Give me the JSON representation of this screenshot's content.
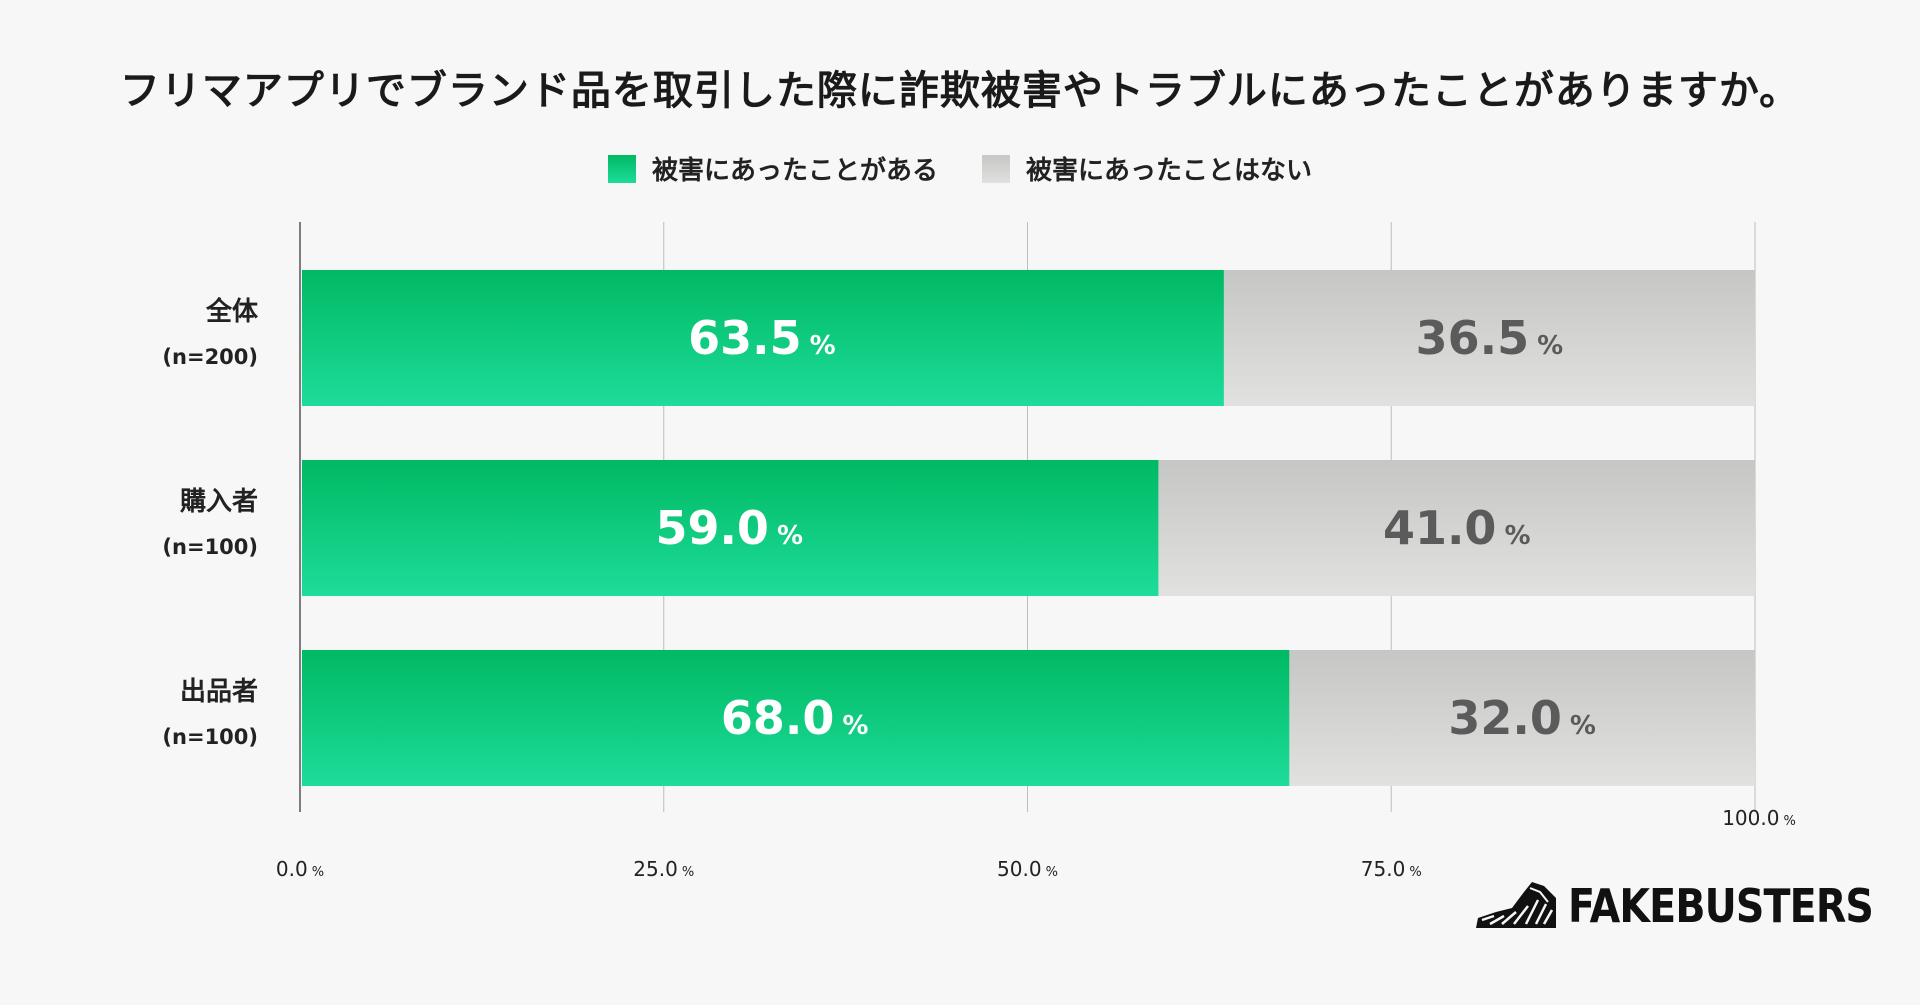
{
  "chart_data": {
    "type": "bar",
    "stacked": true,
    "orientation": "horizontal",
    "title": "フリマアプリでブランド品を取引した際に詐欺被害やトラブルにあったことがありますか。",
    "categories": [
      {
        "label": "全体",
        "sublabel": "(n=200)"
      },
      {
        "label": "購入者",
        "sublabel": "(n=100)"
      },
      {
        "label": "出品者",
        "sublabel": "(n=100)"
      }
    ],
    "series": [
      {
        "name": "被害にあったことがある",
        "values": [
          63.5,
          59.0,
          68.0
        ],
        "color": "#00b963"
      },
      {
        "name": "被害にあったことはない",
        "values": [
          36.5,
          41.0,
          32.0
        ],
        "color": "#c6c7c5"
      }
    ],
    "xlim": [
      0,
      100
    ],
    "ticks": [
      0,
      25,
      50,
      75,
      100
    ],
    "tick_labels": [
      "0.0",
      "25.0",
      "50.0",
      "75.0",
      "100.0"
    ],
    "unit": "%",
    "legend_position": "top"
  },
  "brand": {
    "name": "FAKEBUSTERS"
  }
}
